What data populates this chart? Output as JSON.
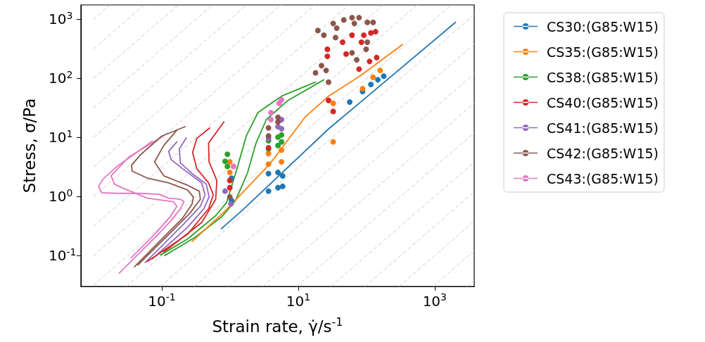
{
  "chart_data": {
    "type": "line",
    "xlabel": "Strain rate, γ̇/s$^{-1}$",
    "ylabel": "Stress, σ/Pa",
    "log": "xy",
    "grid": false,
    "legend": "right",
    "marker": "none",
    "xlim": [
      0.0065,
      3800
    ],
    "xticks": [
      {
        "value": 0.1,
        "label": "10$^{-1}$"
      },
      {
        "value": 10,
        "label": "10$^{1}$"
      },
      {
        "value": 1000,
        "label": "10$^{3}$"
      }
    ],
    "ylim": [
      0.03,
      1750
    ],
    "yticks": [
      {
        "value": 0.1,
        "label": "10$^{-1}$"
      },
      {
        "value": 1,
        "label": "10$^{0}$"
      },
      {
        "value": 10,
        "label": "10$^{1}$"
      },
      {
        "value": 100,
        "label": "10$^{2}$"
      },
      {
        "value": 1000,
        "label": "10$^{3}$"
      }
    ],
    "series": [
      {
        "color": "#cccccc",
        "line_style": "dashed",
        "x": [
          0.01,
          0.0175
        ],
        "values": [
          1000,
          1750
        ]
      },
      {
        "color": "#cccccc",
        "line_style": "dashed",
        "x": [
          0.01,
          0.05534
        ],
        "values": [
          316.2,
          1750
        ]
      },
      {
        "color": "#cccccc",
        "line_style": "dashed",
        "x": [
          0.01,
          0.175
        ],
        "values": [
          100,
          1750
        ]
      },
      {
        "color": "#cccccc",
        "line_style": "dashed",
        "x": [
          0.01,
          0.5534
        ],
        "values": [
          31.62,
          1750
        ]
      },
      {
        "color": "#cccccc",
        "line_style": "dashed",
        "x": [
          0.01,
          1.75
        ],
        "values": [
          10,
          1750
        ]
      },
      {
        "color": "#cccccc",
        "line_style": "dashed",
        "x": [
          0.01,
          5.534
        ],
        "values": [
          3.162,
          1750
        ]
      },
      {
        "color": "#cccccc",
        "line_style": "dashed",
        "x": [
          0.01,
          17.5
        ],
        "values": [
          1,
          1750
        ]
      },
      {
        "color": "#cccccc",
        "line_style": "dashed",
        "x": [
          0.01,
          55.34
        ],
        "values": [
          0.3162,
          1750
        ]
      },
      {
        "color": "#cccccc",
        "line_style": "dashed",
        "x": [
          0.01,
          175
        ],
        "values": [
          0.1,
          1750
        ]
      },
      {
        "color": "#cccccc",
        "line_style": "dashed",
        "x": [
          0.01,
          553.4
        ],
        "values": [
          0.03162,
          1750
        ]
      },
      {
        "color": "#cccccc",
        "line_style": "dashed",
        "x": [
          0.03,
          1750
        ],
        "values": [
          0.03,
          1750
        ]
      },
      {
        "color": "#cccccc",
        "line_style": "dashed",
        "x": [
          0.09487,
          3800
        ],
        "values": [
          0.03,
          1201.7
        ]
      },
      {
        "color": "#cccccc",
        "line_style": "dashed",
        "x": [
          0.3,
          3800
        ],
        "values": [
          0.03,
          380
        ]
      },
      {
        "color": "#cccccc",
        "line_style": "dashed",
        "x": [
          0.9487,
          3800
        ],
        "values": [
          0.03,
          120.2
        ]
      },
      {
        "color": "#cccccc",
        "line_style": "dashed",
        "x": [
          3,
          3800
        ],
        "values": [
          0.03,
          38
        ]
      },
      {
        "color": "#cccccc",
        "line_style": "dashed",
        "x": [
          9.487,
          3800
        ],
        "values": [
          0.03,
          12.02
        ]
      },
      {
        "color": "#cccccc",
        "line_style": "dashed",
        "x": [
          30,
          3800
        ],
        "values": [
          0.03,
          3.8
        ]
      },
      {
        "color": "#cccccc",
        "line_style": "dashed",
        "x": [
          94.87,
          3800
        ],
        "values": [
          0.03,
          1.202
        ]
      },
      {
        "color": "#cccccc",
        "line_style": "dashed",
        "x": [
          300,
          3800
        ],
        "values": [
          0.03,
          0.38
        ]
      },
      {
        "color": "#cccccc",
        "line_style": "dashed",
        "x": [
          948.7,
          3800
        ],
        "values": [
          0.03,
          0.1202
        ]
      },
      {
        "color": "#cccccc",
        "line_style": "dashed",
        "x": [
          3000,
          3800
        ],
        "values": [
          0.03,
          0.038
        ]
      },
      {
        "name": "CS30:(G85:W15)",
        "color": "#1f77b4",
        "x": [
          0.748,
          1.47,
          27.8,
          2018
        ],
        "values": [
          0.286,
          0.567,
          13.9,
          887
        ]
      },
      {
        "name": "CS35:(G85:W15)",
        "color": "#ff7f0e",
        "x": [
          0.278,
          0.845,
          3.81,
          12.5,
          27.8,
          84.4,
          338
        ],
        "values": [
          0.173,
          0.567,
          3.53,
          21.9,
          49.9,
          114,
          373
        ]
      },
      {
        "name": "CS38:(G85:W15)",
        "color": "#2ca02c",
        "x": [
          0.0953,
          0.237,
          0.615,
          0.891,
          1.26,
          1.73,
          2.56,
          5.68,
          17.9
        ],
        "values": [
          0.102,
          0.19,
          0.472,
          0.794,
          2.94,
          10.6,
          26.3,
          49.9,
          86.3
        ]
      },
      {
        "color": "#2ca02c",
        "x": [
          0.11,
          0.3,
          0.75,
          1.2,
          1.8,
          2.4,
          3.4,
          7,
          23.7
        ],
        "values": [
          0.1,
          0.2,
          0.45,
          0.85,
          2.5,
          8,
          20,
          42,
          94.6
        ]
      },
      {
        "name": "CS40:(G85:W15)",
        "color": "#d62728",
        "x": [
          0.0615,
          0.237,
          0.484,
          0.568,
          0.484,
          0.326,
          0.282,
          0.326,
          0.504
        ],
        "values": [
          0.0796,
          0.228,
          0.621,
          1.07,
          1.7,
          2.94,
          5.56,
          9.64,
          14.5
        ]
      },
      {
        "color": "#d62728",
        "x": [
          0.107,
          0.382,
          0.615,
          0.64,
          0.492,
          0.484,
          0.811
        ],
        "values": [
          0.115,
          0.359,
          0.895,
          1.86,
          3.86,
          8.02,
          18.3
        ]
      },
      {
        "name": "CS41:(G85:W15)",
        "color": "#9467bd",
        "x": [
          0.0569,
          0.202,
          0.367,
          0.43,
          0.382,
          0.202,
          0.136,
          0.126,
          0.166
        ],
        "values": [
          0.076,
          0.327,
          0.681,
          1.07,
          1.7,
          2.94,
          4.23,
          5.83,
          8.4
        ]
      },
      {
        "color": "#9467bd",
        "x": [
          0.0721,
          0.237,
          0.413,
          0.492,
          0.448,
          0.278,
          0.187,
          0.18,
          0.228
        ],
        "values": [
          0.0871,
          0.299,
          0.621,
          0.981,
          1.62,
          2.44,
          3.69,
          6.38,
          9.82
        ]
      },
      {
        "name": "CS42:(G85:W15)",
        "color": "#8c564b",
        "x": [
          0.0397,
          0.107,
          0.202,
          0.278,
          0.289,
          0.237,
          0.126,
          0.0615,
          0.0367,
          0.0359,
          0.0485,
          0.099,
          0.219
        ],
        "values": [
          0.0644,
          0.207,
          0.431,
          0.746,
          0.981,
          1.29,
          1.7,
          2.04,
          2.68,
          3.37,
          5.08,
          10.5,
          15.2
        ]
      },
      {
        "color": "#8c564b",
        "x": [
          0.0448,
          0.136,
          0.257,
          0.367,
          0.353,
          0.237,
          0.107,
          0.078,
          0.107,
          0.166
        ],
        "values": [
          0.0694,
          0.249,
          0.518,
          0.895,
          1.23,
          1.55,
          2.23,
          3.86,
          7.33,
          13.3
        ]
      },
      {
        "name": "CS43:(G85:W15)",
        "color": "#e377c2",
        "x": [
          0.0237,
          0.0485,
          0.0914,
          0.147,
          0.187,
          0.211,
          0.187,
          0.126,
          0.0914,
          0.0485,
          0.0219,
          0.0131,
          0.0118,
          0.0136,
          0.0219,
          0.0382,
          0.0721
        ],
        "values": [
          0.0503,
          0.115,
          0.238,
          0.431,
          0.621,
          0.817,
          0.895,
          0.937,
          1.09,
          1.13,
          1.13,
          1.16,
          1.48,
          1.95,
          3.22,
          5.08,
          8.63
        ]
      },
      {
        "color": "#e377c2",
        "x": [
          0.0353,
          0.078,
          0.136,
          0.166,
          0.147,
          0.0615,
          0.0257,
          0.0202,
          0.018,
          0.0327,
          0.107
        ],
        "values": [
          0.0912,
          0.228,
          0.472,
          0.681,
          0.817,
          0.937,
          1.41,
          1.62,
          2.23,
          4.63,
          10.7
        ]
      },
      {
        "type": "scatter",
        "marker": "circle",
        "color": "#1f77b4",
        "x": [
          1.05,
          1.05,
          3.66,
          3.66,
          5.04,
          5.04,
          5.9,
          5.9,
          56.7,
          87.7,
          116,
          147,
          179
        ],
        "values": [
          2.04,
          0.855,
          2.44,
          1.23,
          2.56,
          1.41,
          2.23,
          1.48,
          39.7,
          59.9,
          78.8,
          94.6,
          109
        ]
      },
      {
        "type": "scatter",
        "marker": "circle",
        "color": "#ff7f0e",
        "x": [
          0.991,
          0.991,
          3.66,
          3.66,
          5.68,
          5.68,
          32.5,
          32.5,
          87.7,
          125,
          159
        ],
        "values": [
          3.86,
          2.56,
          5.32,
          3.53,
          6.11,
          3.86,
          37.9,
          8.4,
          66.8,
          104,
          136
        ]
      },
      {
        "type": "scatter",
        "marker": "circle",
        "color": "#2ca02c",
        "x": [
          0.914,
          0.914,
          0.845,
          3.66,
          3.66,
          5.04,
          5.04,
          5.68,
          5.68
        ],
        "values": [
          5.18,
          3.22,
          3.94,
          8.79,
          6.38,
          10.1,
          7.31,
          11,
          8.4
        ]
      },
      {
        "type": "scatter",
        "marker": "circle",
        "color": "#d62728",
        "x": [
          0.991,
          0.991,
          3.66,
          27.8,
          32.5,
          26.7,
          26.7,
          44.7,
          50.3,
          61.4,
          84.4,
          116,
          136,
          91.4,
          77.8,
          111,
          141
        ],
        "values": [
          1.86,
          1.41,
          6.68,
          42.3,
          27.5,
          310,
          236,
          408,
          258,
          537,
          408,
          587,
          615,
          537,
          143,
          193,
          225
        ]
      },
      {
        "type": "scatter",
        "marker": "circle",
        "color": "#9467bd",
        "x": [
          0.845,
          1.03,
          3.66,
          5.04,
          5.68,
          5.68
        ],
        "values": [
          1.23,
          0.746,
          9.62,
          15.2,
          20,
          14
        ]
      },
      {
        "type": "scatter",
        "marker": "circle",
        "color": "#8c564b",
        "x": [
          0.991,
          3.66,
          3.66,
          5.04,
          5.04,
          19.4,
          23.7,
          32.5,
          36.6,
          46.5,
          61.4,
          77.8,
          66.4,
          103,
          125,
          103,
          61.4,
          71.9,
          98.8,
          17.9,
          21.9,
          25.6,
          27.8,
          35.2
        ],
        "values": [
          0.981,
          14.5,
          10.6,
          21.9,
          18.3,
          645,
          537,
          849,
          706,
          973,
          1065,
          1065,
          849,
          887,
          887,
          408,
          270,
          206,
          310,
          124,
          164,
          136,
          86.3,
          490
        ]
      },
      {
        "type": "scatter",
        "marker": "circle",
        "color": "#e377c2",
        "x": [
          1.12,
          3.97,
          3.97,
          5.25,
          5.68
        ],
        "values": [
          3.22,
          26.3,
          20,
          37.9,
          43.5
        ]
      }
    ]
  }
}
